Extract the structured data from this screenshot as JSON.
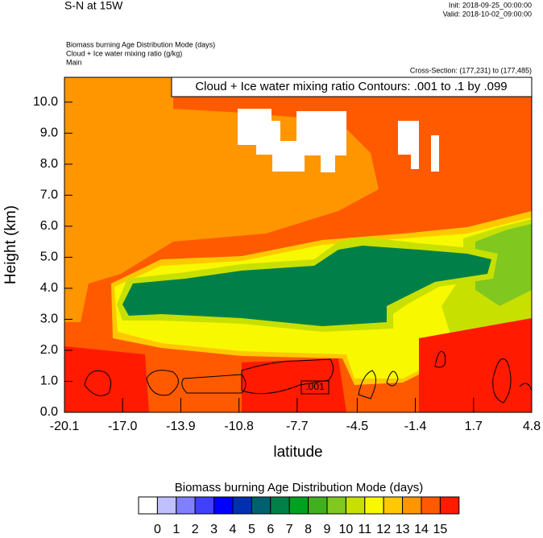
{
  "chart_data": {
    "type": "contour",
    "title": "S-N at 15W",
    "init": "Init: 2018-09-25_00:00:00",
    "valid": "Valid: 2018-10-02_09:00:00",
    "field_title": "Biomass burning Age Distribution Mode   (days)",
    "contour_title": "Cloud + Ice water mixing ratio   (g/kg)",
    "domain": "Main",
    "cross_section": "Cross-Section: (177,231) to (177,485)",
    "contour_note": "Cloud + Ice water mixing ratio Contours: .001 to .1 by .099",
    "contour_label": ".001",
    "xlabel": "latitude",
    "ylabel": "Height (km)",
    "xlim": [
      -20.1,
      4.8
    ],
    "xticks": [
      -20.1,
      {
        "value": -17,
        "label": "-17.0"
      },
      -13.9,
      -10.8,
      -7.7,
      -4.5,
      -1.4,
      1.7,
      4.8
    ],
    "ylim": [
      0,
      10.8
    ],
    "yticks": [
      {
        "value": 0,
        "label": "0.0"
      },
      {
        "value": 1,
        "label": "1.0"
      },
      {
        "value": 2,
        "label": "2.0"
      },
      {
        "value": 3,
        "label": "3.0"
      },
      {
        "value": 4,
        "label": "4.0"
      },
      {
        "value": 5,
        "label": "5.0"
      },
      {
        "value": 6,
        "label": "6.0"
      },
      {
        "value": 7,
        "label": "7.0"
      },
      {
        "value": 8,
        "label": "8.0"
      },
      {
        "value": 9,
        "label": "9.0"
      },
      {
        "value": 10,
        "label": "10.0"
      }
    ],
    "colorbar": {
      "title": "Biomass burning Age Distribution Mode  (days)",
      "levels": [
        0,
        1,
        2,
        3,
        4,
        5,
        6,
        7,
        8,
        9,
        10,
        11,
        12,
        13,
        14,
        15
      ],
      "colors": [
        "#ffffff",
        "#c0c0ff",
        "#8080ff",
        "#4040ff",
        "#0000ff",
        "#0030b0",
        "#006070",
        "#008048",
        "#00a020",
        "#40b020",
        "#80c820",
        "#c8e000",
        "#f8f800",
        "#ffc800",
        "#ff9600",
        "#ff5a00",
        "#ff1a00"
      ]
    }
  }
}
